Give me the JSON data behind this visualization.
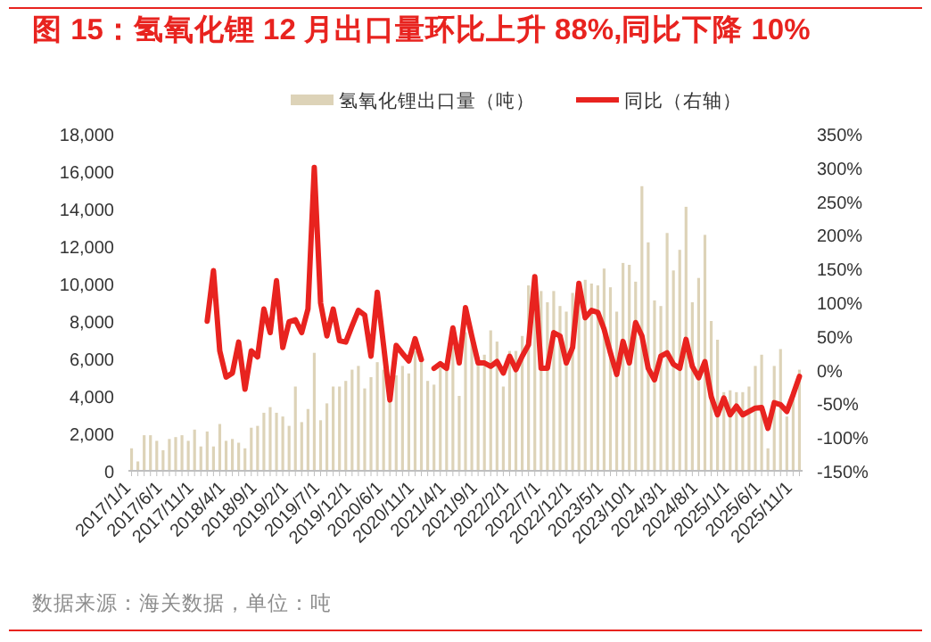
{
  "chart_data": {
    "type": "bar",
    "title": "图 15：氢氧化锂 12 月出口量环比上升 88%,同比下降 10%",
    "annotations": [
      "数据来源：海关数据，单位：吨"
    ],
    "categories": [
      "2017/1/1",
      null,
      null,
      null,
      null,
      "2017/6/1",
      null,
      null,
      null,
      null,
      "2017/11/1",
      null,
      null,
      null,
      null,
      "2018/4/1",
      null,
      null,
      null,
      null,
      "2018/9/1",
      null,
      null,
      null,
      null,
      "2019/2/1",
      null,
      null,
      null,
      null,
      "2019/7/1",
      null,
      null,
      null,
      null,
      "2019/12/1",
      null,
      null,
      null,
      null,
      "2020/6/1",
      null,
      null,
      null,
      null,
      "2020/11/1",
      null,
      null,
      null,
      null,
      "2021/4/1",
      null,
      null,
      null,
      null,
      "2021/9/1",
      null,
      null,
      null,
      null,
      "2022/2/1",
      null,
      null,
      null,
      null,
      "2022/7/1",
      null,
      null,
      null,
      null,
      "2022/12/1",
      null,
      null,
      null,
      null,
      "2023/5/1",
      null,
      null,
      null,
      null,
      "2023/10/1",
      null,
      null,
      null,
      null,
      "2024/3/1",
      null,
      null,
      null,
      null,
      "2024/8/1",
      null,
      null,
      null,
      null,
      "2025/1/1",
      null,
      null,
      null,
      null,
      "2025/6/1",
      null,
      null,
      null,
      null,
      "2025/11/1",
      null
    ],
    "series": [
      {
        "name": "氢氧化锂出口量（吨）",
        "color": "#ddd3b8",
        "values": [
          1200,
          500,
          1900,
          1900,
          1600,
          1100,
          1700,
          1800,
          1900,
          1600,
          2200,
          1300,
          2100,
          1300,
          2500,
          1600,
          1700,
          1500,
          1200,
          2300,
          2400,
          3100,
          3400,
          3100,
          2900,
          2400,
          4500,
          2600,
          3300,
          6300,
          2700,
          3600,
          4500,
          4500,
          4800,
          5400,
          5600,
          4400,
          5000,
          5800,
          5400,
          3700,
          5100,
          5600,
          5200,
          6400,
          5800,
          4800,
          4600,
          5500,
          5800,
          6600,
          4000,
          7400,
          7000,
          6100,
          6200,
          7500,
          6900,
          4500,
          6400,
          6400,
          7200,
          9900,
          8800,
          9600,
          9000,
          9600,
          8800,
          8500,
          9500,
          9000,
          10200,
          10000,
          9900,
          10800,
          9800,
          8500,
          11100,
          11000,
          10100,
          15200,
          12200,
          9100,
          8800,
          12700,
          10700,
          11800,
          14100,
          9000,
          10300,
          12600,
          8000,
          7000,
          4200,
          4300,
          4200,
          4200,
          4500,
          5600,
          6200,
          1200,
          5600,
          6500,
          2900,
          4000,
          5400
        ]
      },
      {
        "name": "同比（右轴）",
        "type": "line",
        "axis": "y2",
        "color": "#e8231f",
        "values": [
          null,
          null,
          null,
          null,
          null,
          null,
          null,
          null,
          null,
          null,
          null,
          null,
          72,
          147,
          28,
          -11,
          -5,
          41,
          -29,
          28,
          19,
          90,
          55,
          132,
          33,
          71,
          74,
          55,
          90,
          300,
          99,
          50,
          90,
          43,
          41,
          65,
          88,
          81,
          20,
          115,
          36,
          -45,
          36,
          24,
          13,
          46,
          15,
          null,
          2,
          9,
          2,
          62,
          10,
          92,
          50,
          10,
          10,
          5,
          12,
          -5,
          20,
          0,
          20,
          37,
          138,
          2,
          2,
          55,
          50,
          10,
          33,
          128,
          77,
          88,
          85,
          60,
          25,
          -7,
          42,
          10,
          70,
          50,
          2,
          -15,
          20,
          25,
          8,
          2,
          45,
          5,
          -12,
          12,
          -40,
          -67,
          -42,
          -67,
          -54,
          -67,
          -62,
          -57,
          -56,
          -87,
          -49,
          -52,
          -62,
          -37,
          -10
        ]
      }
    ],
    "ylim": [
      0,
      18000
    ],
    "yticks": [
      0,
      {
        "value": 2000,
        "label": "2,000"
      },
      {
        "value": 4000,
        "label": "4,000"
      },
      {
        "value": 6000,
        "label": "6,000"
      },
      {
        "value": 8000,
        "label": "8,000"
      },
      {
        "value": 10000,
        "label": "10,000"
      },
      {
        "value": 12000,
        "label": "12,000"
      },
      {
        "value": 14000,
        "label": "14,000"
      },
      {
        "value": 16000,
        "label": "16,000"
      },
      {
        "value": 18000,
        "label": "18,000"
      }
    ],
    "y2lim": [
      -150,
      350
    ],
    "y2ticks": [
      {
        "value": -150,
        "label": "-150%"
      },
      {
        "value": -100,
        "label": "-100%"
      },
      {
        "value": -50,
        "label": "-50%"
      },
      {
        "value": 0,
        "label": "0%"
      },
      {
        "value": 50,
        "label": "50%"
      },
      {
        "value": 100,
        "label": "100%"
      },
      {
        "value": 150,
        "label": "150%"
      },
      {
        "value": 200,
        "label": "200%"
      },
      {
        "value": 250,
        "label": "250%"
      },
      {
        "value": 300,
        "label": "300%"
      },
      {
        "value": 350,
        "label": "350%"
      }
    ],
    "legend": "top",
    "line_style": "solid"
  }
}
